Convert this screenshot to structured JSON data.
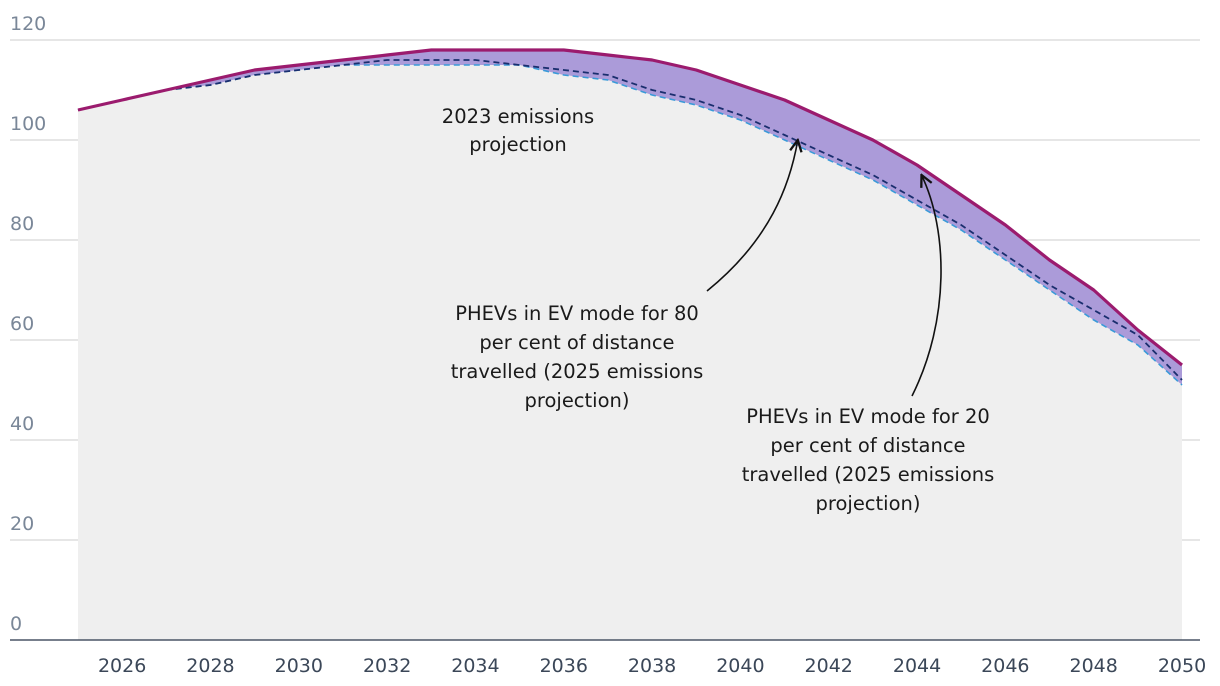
{
  "chart_data": {
    "type": "area",
    "title": "",
    "xlabel": "",
    "ylabel": "",
    "xlim": [
      2025,
      2050
    ],
    "ylim": [
      0,
      120
    ],
    "y_ticks": [
      0,
      20,
      40,
      60,
      80,
      100,
      120
    ],
    "x_ticks": [
      2026,
      2028,
      2030,
      2032,
      2034,
      2036,
      2038,
      2040,
      2042,
      2044,
      2046,
      2048,
      2050
    ],
    "grid": true,
    "legend": "none",
    "x": [
      2025,
      2026,
      2027,
      2028,
      2029,
      2030,
      2031,
      2032,
      2033,
      2034,
      2035,
      2036,
      2037,
      2038,
      2039,
      2040,
      2041,
      2042,
      2043,
      2044,
      2045,
      2046,
      2047,
      2048,
      2049,
      2050
    ],
    "series": [
      {
        "name": "2023 emissions projection",
        "style": "filled-area",
        "color": "#efefef",
        "values": [
          106,
          108,
          110,
          111,
          113,
          114,
          115,
          115,
          115,
          115,
          115,
          113,
          112,
          109,
          107,
          104,
          100,
          96,
          92,
          87,
          82,
          76,
          70,
          64,
          59,
          51
        ]
      },
      {
        "name": "PHEVs in EV mode for 80 per cent of distance travelled (2025 emissions projection)",
        "style": "dashed",
        "color": "#1a2e6e",
        "values": [
          106,
          108,
          110,
          111,
          113,
          114,
          115,
          116,
          116,
          116,
          115,
          114,
          113,
          110,
          108,
          105,
          101,
          97,
          93,
          88,
          83,
          77,
          71,
          66,
          61,
          52
        ]
      },
      {
        "name": "PHEVs in EV mode for 20 per cent of distance travelled (2025 emissions projection)",
        "style": "solid",
        "color": "#9b1b6e",
        "values": [
          106,
          108,
          110,
          112,
          114,
          115,
          116,
          117,
          118,
          118,
          118,
          118,
          117,
          116,
          114,
          111,
          108,
          104,
          100,
          95,
          89,
          83,
          76,
          70,
          62,
          55
        ]
      }
    ],
    "band_fill": "#ab9bd9",
    "area_fill": "#efefef",
    "lower_line_color": "#3a9ad8",
    "annotations": [
      {
        "id": "ann-2023",
        "lines": [
          "2023 emissions",
          "projection"
        ],
        "arrow_to": null
      },
      {
        "id": "ann-80",
        "lines": [
          "PHEVs in EV mode for 80",
          "per cent of distance",
          "travelled (2025 emissions",
          "projection)"
        ],
        "arrow_to": {
          "x": 2041.3,
          "y": 100
        }
      },
      {
        "id": "ann-20",
        "lines": [
          "PHEVs in EV mode for 20",
          "per cent of distance",
          "travelled (2025 emissions",
          "projection)"
        ],
        "arrow_to": {
          "x": 2044.1,
          "y": 93
        }
      }
    ]
  }
}
